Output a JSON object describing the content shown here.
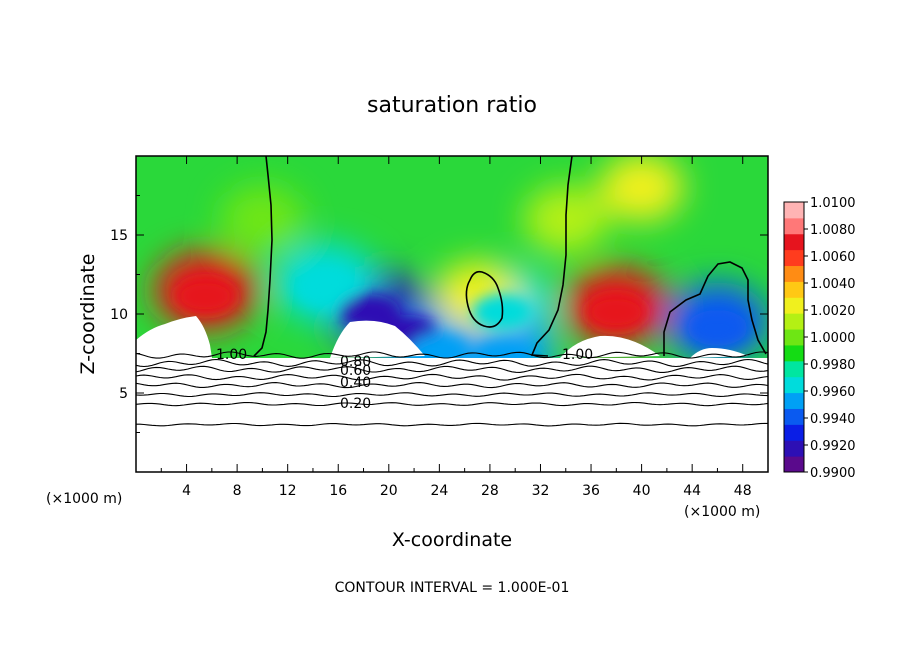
{
  "chart_data": {
    "type": "heatmap",
    "title": "saturation ratio",
    "xlabel": "X-coordinate",
    "ylabel": "Z-coordinate",
    "x_unit_label": "(×1000 m)",
    "xlim": [
      0,
      50
    ],
    "ylim": [
      0,
      20
    ],
    "x_ticks": [
      4,
      8,
      12,
      16,
      20,
      24,
      28,
      32,
      36,
      40,
      44,
      48
    ],
    "y_ticks": [
      5,
      10,
      15
    ],
    "colorbar": {
      "min": 0.99,
      "max": 1.01,
      "ticks": [
        "1.0100",
        "1.0080",
        "1.0060",
        "1.0040",
        "1.0020",
        "1.0000",
        "0.9980",
        "0.9960",
        "0.9940",
        "0.9920",
        "0.9900"
      ],
      "colors": [
        "#5a0a8c",
        "#2d0fb4",
        "#0a1ee6",
        "#0a5af0",
        "#00a0f5",
        "#00dcdc",
        "#00e6a0",
        "#14dc14",
        "#6ee614",
        "#b4f014",
        "#f0f01e",
        "#ffc814",
        "#ff8c14",
        "#ff3c1e",
        "#e6141e",
        "#ff7878",
        "#ffb4b4"
      ]
    },
    "contour_interval": "CONTOUR INTERVAL = 1.000E-01",
    "contour_labels": [
      "1.00",
      "1.00",
      "0.80",
      "0.60",
      "0.40",
      "0.20"
    ],
    "anomalies": [
      {
        "x": 5.5,
        "z": 11.5,
        "value": 1.0075
      },
      {
        "x": 38,
        "z": 10.5,
        "value": 1.007
      },
      {
        "x": 18.5,
        "z": 10.5,
        "value": 0.9915
      },
      {
        "x": 21.5,
        "z": 9.2,
        "value": 0.992
      },
      {
        "x": 15,
        "z": 12,
        "value": 0.996
      },
      {
        "x": 46,
        "z": 9.5,
        "value": 0.994
      },
      {
        "x": 29,
        "z": 10.5,
        "value": 0.997
      },
      {
        "x": 24,
        "z": 8.0,
        "value": 0.995
      },
      {
        "x": 29,
        "z": 7.6,
        "value": 0.995
      },
      {
        "x": 27,
        "z": 11.2,
        "value": 1.0022
      },
      {
        "x": 40,
        "z": 18,
        "value": 1.0022
      },
      {
        "x": 10,
        "z": 16,
        "value": 1.0002
      },
      {
        "x": 34,
        "z": 16,
        "value": 1.0008
      }
    ]
  }
}
